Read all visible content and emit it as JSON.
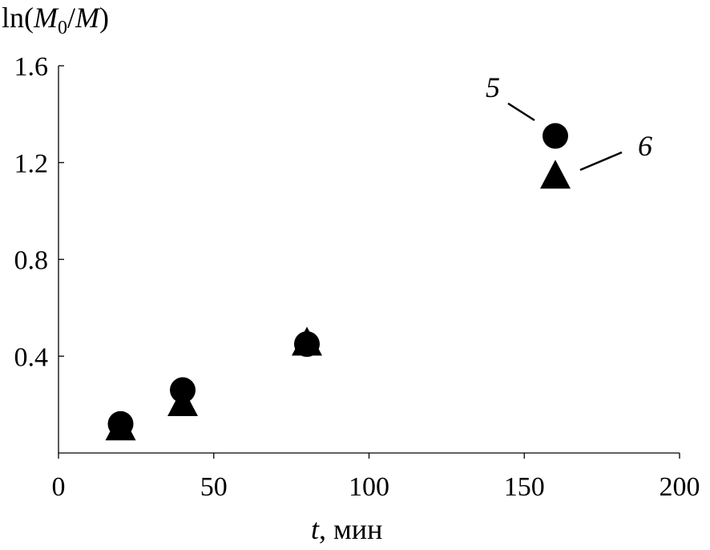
{
  "chart_data": {
    "type": "scatter",
    "ylabel": {
      "prefix": "ln(",
      "var1": "M",
      "sub": "0",
      "slash": "/",
      "var2": "M",
      "suffix": ")"
    },
    "xlabel": {
      "var": "t",
      "rest": ", мин"
    },
    "xlim": [
      0,
      200
    ],
    "ylim": [
      0,
      1.6
    ],
    "xticks": [
      0,
      50,
      100,
      150,
      200
    ],
    "xtick_labels": [
      "0",
      "50",
      "100",
      "150",
      "200"
    ],
    "yticks": [
      0.4,
      0.8,
      1.2,
      1.6
    ],
    "ytick_labels": [
      "0.4",
      "0.8",
      "1.2",
      "1.6"
    ],
    "grid": false,
    "series": [
      {
        "name": "5",
        "marker": "circle",
        "color": "#000000",
        "x": [
          20,
          40,
          80,
          160
        ],
        "y": [
          0.12,
          0.26,
          0.45,
          1.31
        ]
      },
      {
        "name": "6",
        "marker": "triangle",
        "color": "#000000",
        "x": [
          20,
          40,
          80,
          160
        ],
        "y": [
          0.1,
          0.2,
          0.45,
          1.14
        ]
      }
    ]
  }
}
